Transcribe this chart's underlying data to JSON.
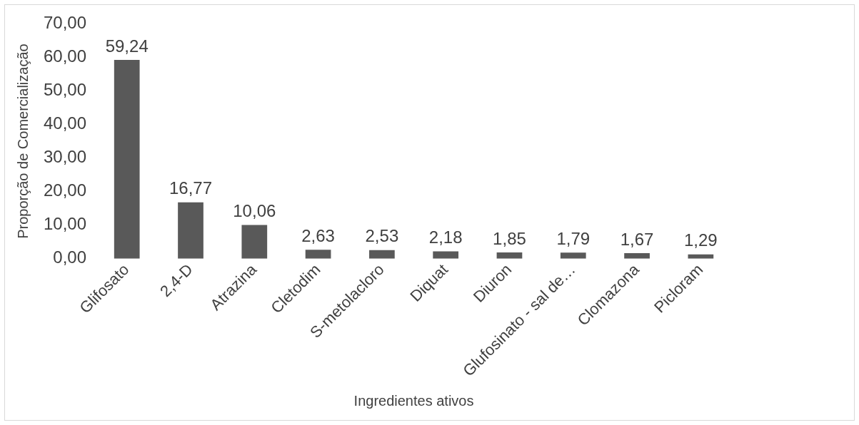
{
  "chart_data": {
    "type": "bar",
    "xlabel": "Ingredientes ativos",
    "ylabel": "Proporção de Comercialização",
    "categories": [
      "Glifosato",
      "2,4-D",
      "Atrazina",
      "Cletodim",
      "S-metolacloro",
      "Diquat",
      "Diuron",
      "Glufosinato - sal de…",
      "Clomazona",
      "Picloram"
    ],
    "values": [
      59.24,
      16.77,
      10.06,
      2.63,
      2.53,
      2.18,
      1.85,
      1.79,
      1.67,
      1.29
    ],
    "value_labels": [
      "59,24",
      "16,77",
      "10,06",
      "2,63",
      "2,53",
      "2,18",
      "1,85",
      "1,79",
      "1,67",
      "1,29"
    ],
    "color": "#595959",
    "ylim": [
      0,
      70
    ],
    "yticks": [
      {
        "value": 0,
        "label": "0,00"
      },
      {
        "value": 10,
        "label": "10,00"
      },
      {
        "value": 20,
        "label": "20,00"
      },
      {
        "value": 30,
        "label": "30,00"
      },
      {
        "value": 40,
        "label": "40,00"
      },
      {
        "value": 50,
        "label": "50,00"
      },
      {
        "value": 60,
        "label": "60,00"
      },
      {
        "value": 70,
        "label": "70,00"
      }
    ],
    "grid": false,
    "legend": false
  }
}
